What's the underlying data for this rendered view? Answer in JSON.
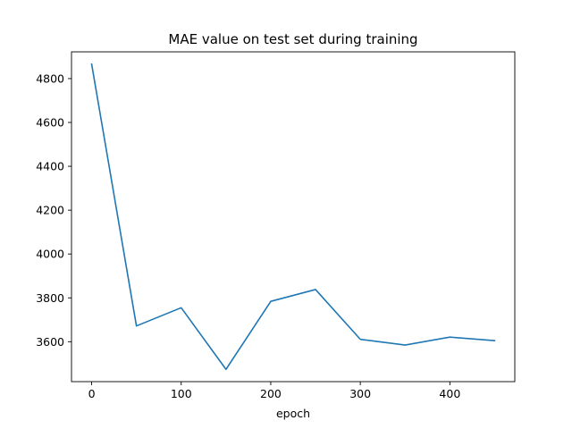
{
  "chart_data": {
    "type": "line",
    "title": "MAE value on test set during training",
    "xlabel": "epoch",
    "ylabel": "",
    "xlim": [
      -22.5,
      472.5
    ],
    "ylim": [
      3418,
      4922
    ],
    "x_ticks": [
      0,
      100,
      200,
      300,
      400
    ],
    "y_ticks": [
      3600,
      3800,
      4000,
      4200,
      4400,
      4600,
      4800
    ],
    "grid": false,
    "series": [
      {
        "color": "#1f77b4",
        "x": [
          0,
          50,
          100,
          150,
          200,
          250,
          300,
          350,
          400,
          450
        ],
        "y": [
          4866,
          3672,
          3755,
          3474,
          3784,
          3838,
          3611,
          3585,
          3621,
          3605
        ]
      }
    ]
  }
}
